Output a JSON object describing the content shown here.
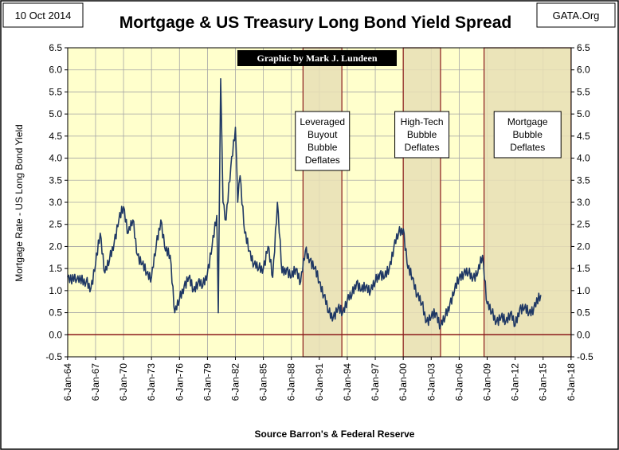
{
  "date_label": "10 Oct 2014",
  "source_label": "GATA.Org",
  "credit": "Graphic by Mark J. Lundeen",
  "colors": {
    "plot_bg": "#ffffcc",
    "band_fill": "#e8dfb5",
    "band_border": "#8b1a1a",
    "line": "#1f3864",
    "zero_line": "#8b1a1a",
    "grid": "#a6a6a6"
  },
  "chart_data": {
    "type": "line",
    "title": "Mortgage & US Treasury Long Bond Yield Spread",
    "xlabel": "Source Barron's & Federal Reserve",
    "ylabel": "Mortgage Rate  -  US Long Bond Yield",
    "ylim": [
      -0.5,
      6.5
    ],
    "y_ticks": [
      "-0.5",
      "0.0",
      "0.5",
      "1.0",
      "1.5",
      "2.0",
      "2.5",
      "3.0",
      "3.5",
      "4.0",
      "4.5",
      "5.0",
      "5.5",
      "6.0",
      "6.5"
    ],
    "x_ticks": [
      "6-Jan-64",
      "6-Jan-67",
      "6-Jan-70",
      "6-Jan-73",
      "6-Jan-76",
      "6-Jan-79",
      "6-Jan-82",
      "6-Jan-85",
      "6-Jan-88",
      "6-Jan-91",
      "6-Jan-94",
      "6-Jan-97",
      "6-Jan-00",
      "6-Jan-03",
      "6-Jan-06",
      "6-Jan-09",
      "6-Jan-12",
      "6-Jan-15",
      "6-Jan-18"
    ],
    "x_range": [
      "1964-01-06",
      "2018-01-06"
    ],
    "grid": true,
    "annotations": [
      {
        "label_lines": [
          "Leveraged",
          "Buyout",
          "Bubble",
          "Deflates"
        ],
        "start": "1989-04",
        "end": "1993-06"
      },
      {
        "label_lines": [
          "High-Tech",
          "Bubble",
          "Deflates"
        ],
        "start": "2000-01",
        "end": "2004-01"
      },
      {
        "label_lines": [
          "Mortgage",
          "Bubble",
          "Deflates"
        ],
        "start": "2008-09",
        "end": "2018-01"
      }
    ],
    "series": [
      {
        "x": [
          "1964-01",
          "1965-01",
          "1966-01",
          "1966-07",
          "1967-01",
          "1967-07",
          "1968-01",
          "1968-07",
          "1969-01",
          "1969-07",
          "1970-01",
          "1970-07",
          "1971-01",
          "1971-07",
          "1972-01",
          "1972-07",
          "1973-01",
          "1973-07",
          "1974-01",
          "1974-07",
          "1975-01",
          "1975-07",
          "1976-01",
          "1976-07",
          "1977-01",
          "1977-07",
          "1978-01",
          "1978-07",
          "1979-01",
          "1979-07",
          "1980-01",
          "1980-03",
          "1980-06",
          "1980-09",
          "1981-01",
          "1981-07",
          "1982-01",
          "1982-04",
          "1982-07",
          "1983-01",
          "1983-07",
          "1984-01",
          "1984-07",
          "1985-01",
          "1985-07",
          "1986-01",
          "1986-07",
          "1987-01",
          "1987-07",
          "1988-01",
          "1988-07",
          "1989-01",
          "1989-07",
          "1990-01",
          "1990-07",
          "1991-01",
          "1991-07",
          "1992-01",
          "1992-07",
          "1993-01",
          "1993-07",
          "1994-01",
          "1994-07",
          "1995-01",
          "1995-07",
          "1996-01",
          "1996-07",
          "1997-01",
          "1997-07",
          "1998-01",
          "1998-07",
          "1999-01",
          "1999-07",
          "2000-01",
          "2000-07",
          "2001-01",
          "2001-07",
          "2002-01",
          "2002-07",
          "2003-01",
          "2003-07",
          "2004-01",
          "2004-07",
          "2005-01",
          "2005-07",
          "2006-01",
          "2006-07",
          "2007-01",
          "2007-07",
          "2008-01",
          "2008-07",
          "2009-01",
          "2009-07",
          "2010-01",
          "2010-07",
          "2011-01",
          "2011-07",
          "2012-01",
          "2012-07",
          "2013-01",
          "2013-07",
          "2014-01",
          "2014-10"
        ],
        "y": [
          1.3,
          1.25,
          1.2,
          1.05,
          1.6,
          2.3,
          1.4,
          1.7,
          2.1,
          2.6,
          2.9,
          2.3,
          2.6,
          1.8,
          1.6,
          1.4,
          1.3,
          2.0,
          2.6,
          1.9,
          1.8,
          0.5,
          0.8,
          1.1,
          1.3,
          1.0,
          1.2,
          1.1,
          1.4,
          2.0,
          2.7,
          0.5,
          5.8,
          3.0,
          2.6,
          3.8,
          4.7,
          3.0,
          3.6,
          2.3,
          1.9,
          1.6,
          1.5,
          1.5,
          2.0,
          1.3,
          3.0,
          1.4,
          1.5,
          1.3,
          1.5,
          1.2,
          1.9,
          1.7,
          1.5,
          1.2,
          0.9,
          0.5,
          0.4,
          0.6,
          0.5,
          0.8,
          0.9,
          1.2,
          1.0,
          1.1,
          1.0,
          1.2,
          1.4,
          1.3,
          1.5,
          2.0,
          2.3,
          2.4,
          1.5,
          1.3,
          0.9,
          0.7,
          0.3,
          0.4,
          0.5,
          0.2,
          0.4,
          0.7,
          1.0,
          1.3,
          1.4,
          1.4,
          1.3,
          1.4,
          1.8,
          0.7,
          0.5,
          0.3,
          0.4,
          0.3,
          0.5,
          0.2,
          0.6,
          0.6,
          0.5,
          0.6,
          0.9
        ]
      }
    ]
  }
}
